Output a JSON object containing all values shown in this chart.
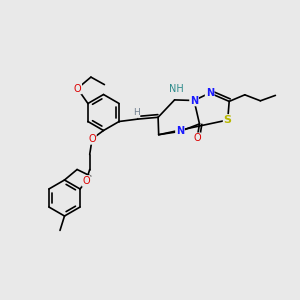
{
  "bg_color": "#e9e9e9",
  "figsize": [
    3.0,
    3.0
  ],
  "dpi": 100,
  "colors": {
    "C": "#000000",
    "N": "#1a1aff",
    "O": "#dd0000",
    "S": "#b8b800",
    "H_gray": "#708090",
    "NH_teal": "#2e8b8b",
    "bond": "#000000"
  }
}
